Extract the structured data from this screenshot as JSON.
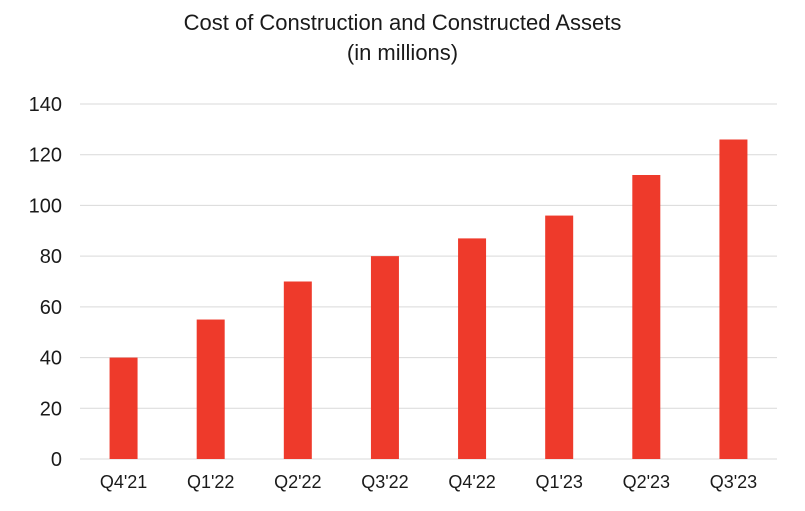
{
  "chart_data": {
    "type": "bar",
    "title": "Cost of Construction and Constructed Assets",
    "subtitle": "(in millions)",
    "categories": [
      "Q4'21",
      "Q1'22",
      "Q2'22",
      "Q3'22",
      "Q4'22",
      "Q1'23",
      "Q2'23",
      "Q3'23"
    ],
    "values": [
      40,
      55,
      70,
      80,
      87,
      96,
      112,
      126
    ],
    "y_ticks": [
      "0",
      "20",
      "40",
      "60",
      "80",
      "100",
      "120",
      "140"
    ],
    "ylim": [
      0,
      140
    ],
    "grid": true,
    "legend": "none",
    "bar_color": "#ee3a2b",
    "grid_color": "#d9d9d9"
  }
}
